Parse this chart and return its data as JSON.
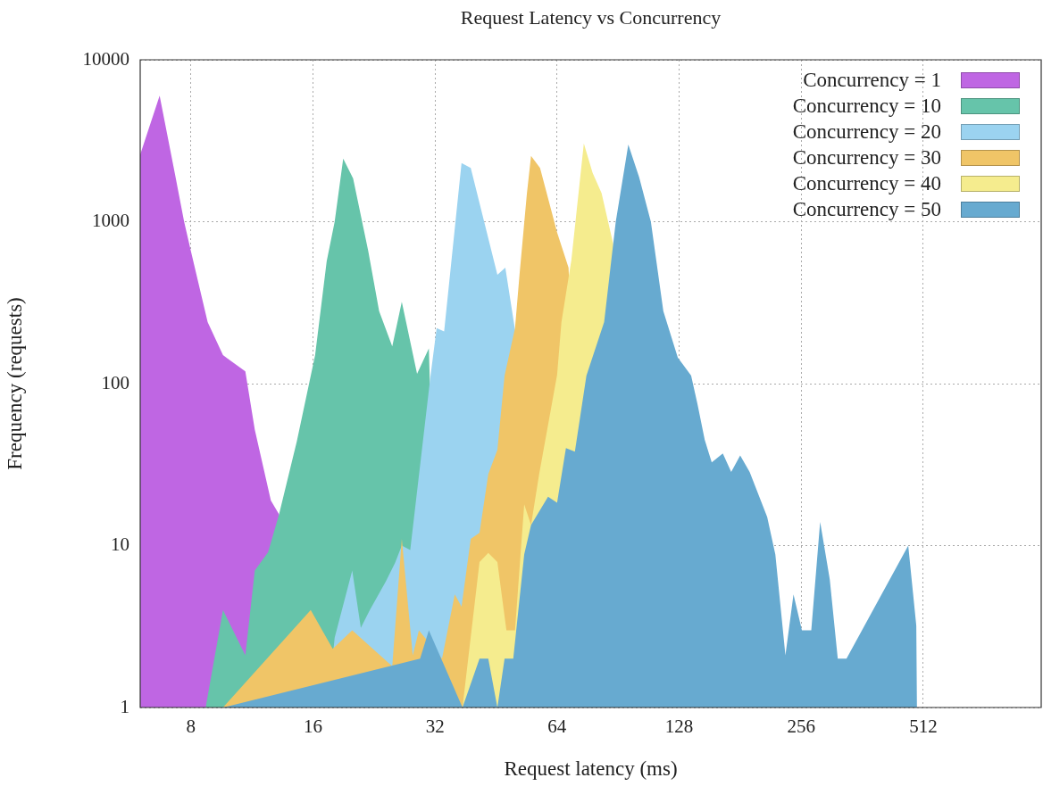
{
  "chart_data": {
    "type": "area",
    "title": "Request Latency vs Concurrency",
    "xlabel": "Request latency (ms)",
    "ylabel": "Frequency (requests)",
    "log": "xy",
    "xlim": [
      6,
      1000
    ],
    "ylim": [
      1,
      10000
    ],
    "xticks": [
      8,
      16,
      32,
      64,
      128,
      256,
      512
    ],
    "yticks": [
      1,
      10,
      100,
      1000,
      10000
    ],
    "grid": true,
    "legend": "top right",
    "series": [
      {
        "name": "Concurrency = 1",
        "color": "#bf66e3",
        "x": [
          6,
          6.7,
          7.3,
          7.7,
          8.0,
          8.8,
          9.6,
          10.9,
          11.5,
          12.6,
          13.2,
          13.5
        ],
        "values": [
          2600,
          6000,
          2000,
          1000,
          660,
          240,
          150,
          119,
          52,
          19,
          15.6,
          1
        ]
      },
      {
        "name": "Concurrency = 10",
        "color": "#66c4aa",
        "x": [
          8.7,
          9.6,
          10.9,
          11.5,
          12.4,
          13.2,
          14.6,
          16.2,
          17.3,
          18.1,
          19.0,
          20.1,
          21.9,
          23.3,
          25.1,
          26.5,
          28.9,
          30.9,
          32,
          32.8
        ],
        "values": [
          1,
          4,
          2.1,
          7,
          9.1,
          15.6,
          44,
          150,
          570,
          1000,
          2450,
          1850,
          660,
          280,
          170,
          320,
          115,
          165,
          null,
          1
        ]
      },
      {
        "name": "Concurrency = 20",
        "color": "#9bd3f0",
        "x": [
          17.4,
          18.1,
          20.0,
          21.0,
          22.1,
          22.8,
          24.2,
          25.5,
          26.5,
          27.8,
          31.2,
          32.3,
          33.7,
          37.2,
          39.2,
          45.6,
          47.7,
          50.4,
          52
        ],
        "values": [
          1,
          2.7,
          7,
          3.1,
          4,
          null,
          6,
          7.8,
          10,
          9.4,
          112,
          220,
          210,
          2300,
          2150,
          470,
          520,
          215,
          1
        ]
      },
      {
        "name": "Concurrency = 30",
        "color": "#f0c567",
        "x": [
          9.6,
          15.8,
          17.9,
          18.8,
          20.0,
          21.3,
          25.1,
          26.5,
          28.2,
          29.2,
          33.3,
          35.8,
          37.2,
          39.2,
          41.2,
          43.3,
          45.6,
          47.5,
          50.4,
          51.7,
          53.9,
          55.2,
          58.1,
          64,
          68.3,
          71.9,
          75.6
        ],
        "values": [
          1,
          4,
          2.3,
          null,
          3,
          null,
          1.8,
          11,
          2.1,
          3,
          2,
          5,
          4.2,
          11,
          12,
          27.6,
          39,
          112,
          220,
          470,
          1480,
          2550,
          2150,
          860,
          520,
          null,
          1
        ]
      },
      {
        "name": "Concurrency = 40",
        "color": "#f5ec8e",
        "x": [
          37.4,
          41.2,
          43.3,
          45.6,
          48,
          50.4,
          53.1,
          55.2,
          57.8,
          64,
          65.6,
          69.4,
          74.5,
          78.3,
          82.4,
          88,
          92.6,
          97.4
        ],
        "values": [
          1,
          7.9,
          9,
          7.9,
          3,
          3,
          18,
          13.4,
          27.6,
          113,
          240,
          580,
          3040,
          2000,
          1500,
          730,
          null,
          1
        ]
      },
      {
        "name": "Concurrency = 50",
        "color": "#67aad0",
        "x": [
          9.6,
          29.4,
          30.9,
          37.4,
          41.2,
          43.3,
          45.6,
          47.5,
          49.9,
          53.1,
          55.2,
          60.8,
          64,
          67.3,
          70.8,
          75.6,
          83.6,
          89.3,
          95.9,
          102,
          109,
          117,
          127,
          137,
          142,
          148,
          154,
          164,
          172,
          181,
          191,
          211,
          221,
          234,
          245,
          257,
          271,
          285,
          301,
          315,
          331,
          470,
          492,
          494
        ],
        "values": [
          1,
          2,
          3,
          1,
          2,
          2,
          1,
          2,
          2,
          8.8,
          13.4,
          20,
          18.4,
          40,
          38,
          112,
          240,
          1000,
          3000,
          1880,
          1000,
          280,
          145,
          112,
          75,
          45,
          32.6,
          37,
          28.5,
          36,
          28.5,
          15,
          8.8,
          2.1,
          5,
          3,
          3,
          14,
          6.2,
          2,
          2,
          10,
          3.2,
          1
        ]
      }
    ]
  }
}
